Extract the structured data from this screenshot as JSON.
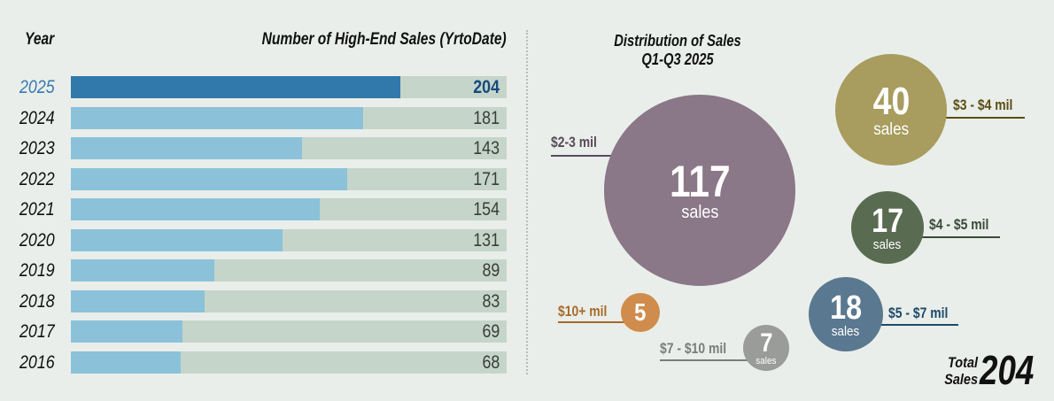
{
  "chart_data": [
    {
      "type": "bar",
      "orientation": "horizontal",
      "title": "Number of High-End Sales (YrtoDate)",
      "category_header": "Year",
      "categories": [
        "2025",
        "2024",
        "2023",
        "2022",
        "2021",
        "2020",
        "2019",
        "2018",
        "2017",
        "2016"
      ],
      "values": [
        204,
        181,
        143,
        171,
        154,
        131,
        89,
        83,
        69,
        68
      ],
      "highlight": "2025",
      "xlim": [
        0,
        270
      ],
      "colors": {
        "highlight": "#3178ab",
        "normal": "#8bc2d9",
        "track": "#c5d5ca",
        "highlight_label": "#3a7ab0",
        "highlight_value": "#154a7e"
      }
    },
    {
      "type": "bubble",
      "title": "Distribution of Sales Q1-Q3 2025",
      "unit_label": "sales",
      "items": [
        {
          "range": "$2-3 mil",
          "count": 117,
          "color": "#8a7787",
          "label_color": "#5a4a5a"
        },
        {
          "range": "$3 - $4 mil",
          "count": 40,
          "color": "#a89c5e",
          "label_color": "#5c4d10"
        },
        {
          "range": "$4 - $5 mil",
          "count": 17,
          "color": "#596b51",
          "label_color": "#3a4a36"
        },
        {
          "range": "$5 - $7 mil",
          "count": 18,
          "color": "#5a7890",
          "label_color": "#1f4a6a"
        },
        {
          "range": "$10+ mil",
          "count": 5,
          "color": "#d08c4c",
          "label_color": "#a86a2a"
        },
        {
          "range": "$7 - $10 mil",
          "count": 7,
          "color": "#999c99",
          "label_color": "#7a7d7a"
        }
      ],
      "total_label": "Total Sales",
      "total_value": 204
    }
  ],
  "header": {
    "year_label": "Year",
    "bar_title": "Number of High-End Sales (YrtoDate)"
  },
  "distribution": {
    "title_line1": "Distribution of Sales",
    "title_line2": "Q1-Q3 2025"
  },
  "total": {
    "label_line1": "Total",
    "label_line2": "Sales",
    "value": "204"
  }
}
